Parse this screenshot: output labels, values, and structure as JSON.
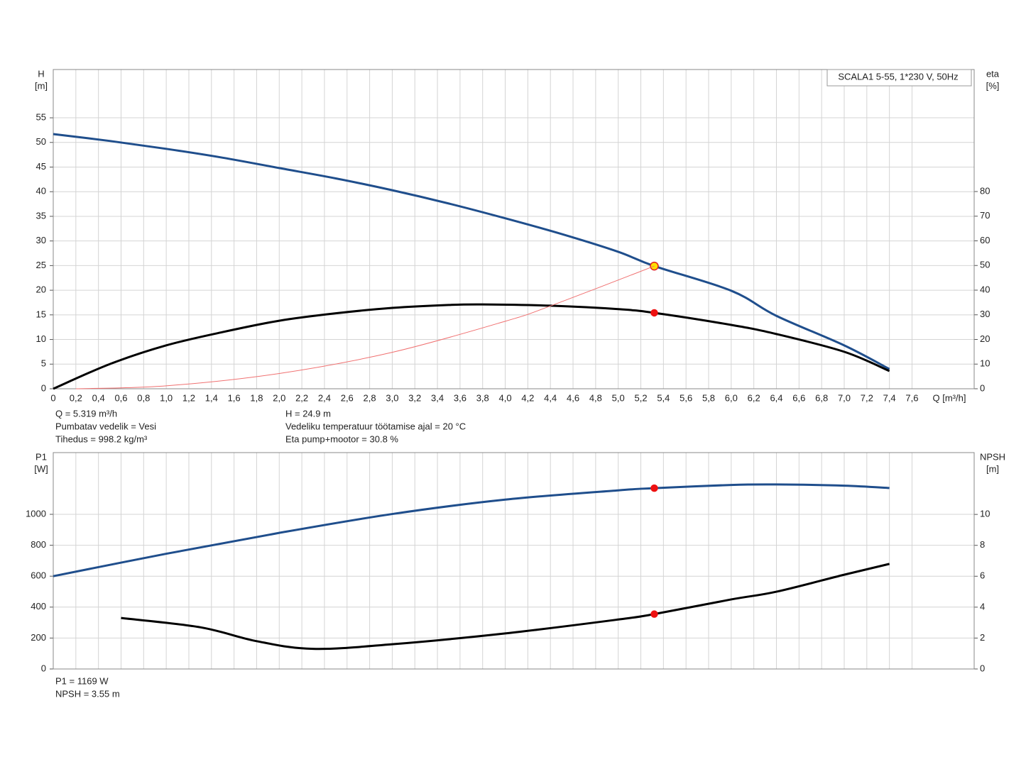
{
  "chart_data": [
    {
      "type": "line",
      "annotation": "SCALA1 5-55, 1*230 V, 50Hz",
      "y_label": [
        "H",
        "[m]"
      ],
      "y2_label": [
        "eta",
        "[%]"
      ],
      "x_label": "Q [m³/h]",
      "xlim": [
        0,
        8.15
      ],
      "xticks": [
        {
          "value": 0,
          "label": "0"
        },
        {
          "value": 0.2,
          "label": "0,2"
        },
        {
          "value": 0.4,
          "label": "0,4"
        },
        {
          "value": 0.6,
          "label": "0,6"
        },
        {
          "value": 0.8,
          "label": "0,8"
        },
        {
          "value": 1.0,
          "label": "1,0"
        },
        {
          "value": 1.2,
          "label": "1,2"
        },
        {
          "value": 1.4,
          "label": "1,4"
        },
        {
          "value": 1.6,
          "label": "1,6"
        },
        {
          "value": 1.8,
          "label": "1,8"
        },
        {
          "value": 2.0,
          "label": "2,0"
        },
        {
          "value": 2.2,
          "label": "2,2"
        },
        {
          "value": 2.4,
          "label": "2,4"
        },
        {
          "value": 2.6,
          "label": "2,6"
        },
        {
          "value": 2.8,
          "label": "2,8"
        },
        {
          "value": 3.0,
          "label": "3,0"
        },
        {
          "value": 3.2,
          "label": "3,2"
        },
        {
          "value": 3.4,
          "label": "3,4"
        },
        {
          "value": 3.6,
          "label": "3,6"
        },
        {
          "value": 3.8,
          "label": "3,8"
        },
        {
          "value": 4.0,
          "label": "4,0"
        },
        {
          "value": 4.2,
          "label": "4,2"
        },
        {
          "value": 4.4,
          "label": "4,4"
        },
        {
          "value": 4.6,
          "label": "4,6"
        },
        {
          "value": 4.8,
          "label": "4,8"
        },
        {
          "value": 5.0,
          "label": "5,0"
        },
        {
          "value": 5.2,
          "label": "5,2"
        },
        {
          "value": 5.4,
          "label": "5,4"
        },
        {
          "value": 5.6,
          "label": "5,6"
        },
        {
          "value": 5.8,
          "label": "5,8"
        },
        {
          "value": 6.0,
          "label": "6,0"
        },
        {
          "value": 6.2,
          "label": "6,2"
        },
        {
          "value": 6.4,
          "label": "6,4"
        },
        {
          "value": 6.6,
          "label": "6,6"
        },
        {
          "value": 6.8,
          "label": "6,8"
        },
        {
          "value": 7.0,
          "label": "7,0"
        },
        {
          "value": 7.2,
          "label": "7,2"
        },
        {
          "value": 7.4,
          "label": "7,4"
        },
        {
          "value": 7.6,
          "label": "7,6"
        }
      ],
      "ylim": [
        0,
        64.8
      ],
      "yticks": [
        0,
        5,
        10,
        15,
        20,
        25,
        30,
        35,
        40,
        45,
        50,
        55
      ],
      "y2lim": [
        0,
        129.5
      ],
      "y2ticks": [
        0,
        10,
        20,
        30,
        40,
        50,
        60,
        70,
        80
      ],
      "grid": true,
      "series": [
        {
          "name": "H",
          "color": "#1f4e8c",
          "width": 3,
          "x": [
            0,
            0.5,
            1,
            1.5,
            2,
            2.5,
            3,
            3.5,
            4,
            4.5,
            5,
            5.319,
            6,
            6.4,
            7,
            7.4
          ],
          "values": [
            51.7,
            50.3,
            48.7,
            46.9,
            44.8,
            42.7,
            40.3,
            37.6,
            34.6,
            31.4,
            27.8,
            24.9,
            19.9,
            14.8,
            8.8,
            4.0
          ],
          "point": [
            5.319,
            24.9
          ],
          "point_color": "#ffe000",
          "point_stroke": "#e02020"
        },
        {
          "name": "eta",
          "color": "#000000",
          "width": 3,
          "axis": "y2",
          "x": [
            0,
            0.5,
            1,
            1.5,
            2,
            2.5,
            3,
            3.5,
            3.8,
            4.4,
            5,
            5.319,
            6,
            6.4,
            7,
            7.4
          ],
          "values": [
            0,
            10,
            17.6,
            23,
            27.6,
            30.6,
            32.8,
            34,
            34.2,
            33.7,
            32.3,
            30.8,
            25.9,
            22.2,
            15,
            7.2
          ],
          "point": [
            5.319,
            30.8
          ],
          "point_color": "#ee1111",
          "point_stroke": "#ee1111"
        },
        {
          "name": "system",
          "color": "#f07070",
          "width": 1,
          "x": [
            0.2,
            1,
            2,
            3,
            4,
            4.4,
            5.319
          ],
          "values": [
            0,
            0.6,
            3.1,
            7.4,
            13.7,
            16.8,
            24.9
          ]
        }
      ],
      "notes": [
        [
          "Q = 5.319 m³/h",
          "Pumbatav vedelik = Vesi",
          "Tihedus = 998.2 kg/m³"
        ],
        [
          "H = 24.9 m",
          "Vedeliku temperatuur töötamise ajal = 20 °C",
          "Eta pump+mootor = 30.8 %"
        ]
      ]
    },
    {
      "type": "line",
      "y_label": [
        "P1",
        "[W]"
      ],
      "y2_label": [
        "NPSH",
        "[m]"
      ],
      "xlim": [
        0,
        8.15
      ],
      "xticks": [
        0,
        0.2,
        0.4,
        0.6,
        0.8,
        1.0,
        1.2,
        1.4,
        1.6,
        1.8,
        2.0,
        2.2,
        2.4,
        2.6,
        2.8,
        3.0,
        3.2,
        3.4,
        3.6,
        3.8,
        4.0,
        4.2,
        4.4,
        4.6,
        4.8,
        5.0,
        5.2,
        5.4,
        5.6,
        5.8,
        6.0,
        6.2,
        6.4,
        6.6,
        6.8,
        7.0,
        7.2,
        7.4,
        7.6
      ],
      "ylim": [
        0,
        1399
      ],
      "yticks": [
        0,
        200,
        400,
        600,
        800,
        1000
      ],
      "y2lim": [
        0,
        14
      ],
      "y2ticks": [
        0,
        2,
        4,
        6,
        8,
        10
      ],
      "grid": true,
      "series": [
        {
          "name": "P1",
          "color": "#1f4e8c",
          "width": 3,
          "x": [
            0,
            1,
            2,
            3,
            4,
            5,
            5.319,
            6,
            6.4,
            7,
            7.4
          ],
          "values": [
            600,
            745,
            880,
            1002,
            1095,
            1155,
            1169,
            1190,
            1193,
            1185,
            1170
          ],
          "point": [
            5.319,
            1169
          ],
          "point_color": "#ee1111",
          "point_stroke": "#ee1111"
        },
        {
          "name": "NPSH",
          "color": "#000000",
          "width": 3,
          "axis": "y2",
          "x": [
            0.6,
            1.3,
            1.8,
            2.3,
            3,
            4,
            5,
            5.319,
            6,
            6.4,
            7,
            7.4
          ],
          "values": [
            3.3,
            2.7,
            1.8,
            1.3,
            1.6,
            2.3,
            3.2,
            3.55,
            4.5,
            5.0,
            6.1,
            6.8
          ],
          "point": [
            5.319,
            3.55
          ],
          "point_color": "#ee1111",
          "point_stroke": "#ee1111"
        }
      ],
      "notes": [
        [
          "P1 = 1169 W",
          "NPSH = 3.55 m"
        ]
      ]
    }
  ]
}
